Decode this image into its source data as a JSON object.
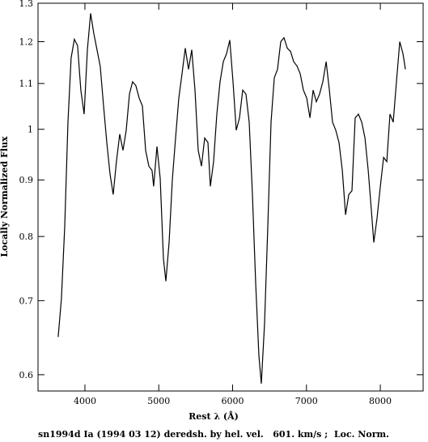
{
  "chart_data": {
    "type": "line",
    "x_label": "Rest λ (Å)",
    "y_label": "Locally Normalized Flux",
    "caption": "sn1994d Ia (1994 03 12) deredsh. by hel. vel.   601. km/s ;  Loc. Norm.",
    "log_y": true,
    "color": "#000000",
    "xlim": [
      3365,
      8580
    ],
    "xticks": [
      4000,
      5000,
      6000,
      7000,
      8000
    ],
    "ylim": [
      0.58,
      1.3
    ],
    "yticks": [
      0.6,
      0.7,
      0.8,
      0.9,
      1,
      1.1,
      1.2,
      1.3
    ],
    "x": [
      3638,
      3682,
      3726,
      3770,
      3813,
      3857,
      3901,
      3945,
      3989,
      4033,
      4077,
      4120,
      4164,
      4208,
      4252,
      4296,
      4340,
      4383,
      4427,
      4471,
      4515,
      4559,
      4603,
      4646,
      4690,
      4734,
      4778,
      4822,
      4866,
      4909,
      4931,
      4975,
      5019,
      5063,
      5096,
      5140,
      5184,
      5227,
      5271,
      5315,
      5359,
      5403,
      5447,
      5490,
      5534,
      5578,
      5622,
      5666,
      5699,
      5742,
      5786,
      5830,
      5874,
      5918,
      5962,
      6005,
      6049,
      6093,
      6137,
      6181,
      6225,
      6268,
      6312,
      6356,
      6389,
      6433,
      6477,
      6520,
      6564,
      6608,
      6652,
      6696,
      6740,
      6784,
      6827,
      6871,
      6915,
      6959,
      7003,
      7047,
      7090,
      7134,
      7178,
      7222,
      7266,
      7310,
      7353,
      7397,
      7441,
      7485,
      7529,
      7573,
      7616,
      7660,
      7704,
      7748,
      7792,
      7836,
      7879,
      7912,
      7956,
      8000,
      8044,
      8088,
      8131,
      8175,
      8219,
      8263,
      8307,
      8340
    ],
    "values": [
      0.649,
      0.703,
      0.817,
      1.015,
      1.16,
      1.206,
      1.19,
      1.085,
      1.032,
      1.18,
      1.273,
      1.221,
      1.18,
      1.14,
      1.05,
      0.973,
      0.911,
      0.873,
      0.935,
      0.99,
      0.957,
      0.998,
      1.076,
      1.104,
      1.095,
      1.067,
      1.05,
      0.957,
      0.926,
      0.918,
      0.888,
      0.965,
      0.903,
      0.764,
      0.729,
      0.79,
      0.9,
      0.982,
      1.067,
      1.123,
      1.184,
      1.133,
      1.18,
      1.085,
      0.957,
      0.926,
      0.982,
      0.973,
      0.888,
      0.935,
      1.032,
      1.104,
      1.151,
      1.17,
      1.204,
      1.104,
      0.998,
      1.024,
      1.085,
      1.076,
      1.015,
      0.873,
      0.726,
      0.624,
      0.589,
      0.668,
      0.817,
      1.015,
      1.113,
      1.133,
      1.2,
      1.21,
      1.184,
      1.176,
      1.151,
      1.141,
      1.123,
      1.085,
      1.067,
      1.024,
      1.085,
      1.059,
      1.076,
      1.104,
      1.151,
      1.085,
      1.015,
      0.998,
      0.973,
      0.918,
      0.837,
      0.873,
      0.88,
      1.024,
      1.032,
      1.015,
      0.982,
      0.918,
      0.845,
      0.79,
      0.831,
      0.888,
      0.943,
      0.935,
      1.032,
      1.015,
      1.104,
      1.2,
      1.17,
      1.133
    ]
  }
}
